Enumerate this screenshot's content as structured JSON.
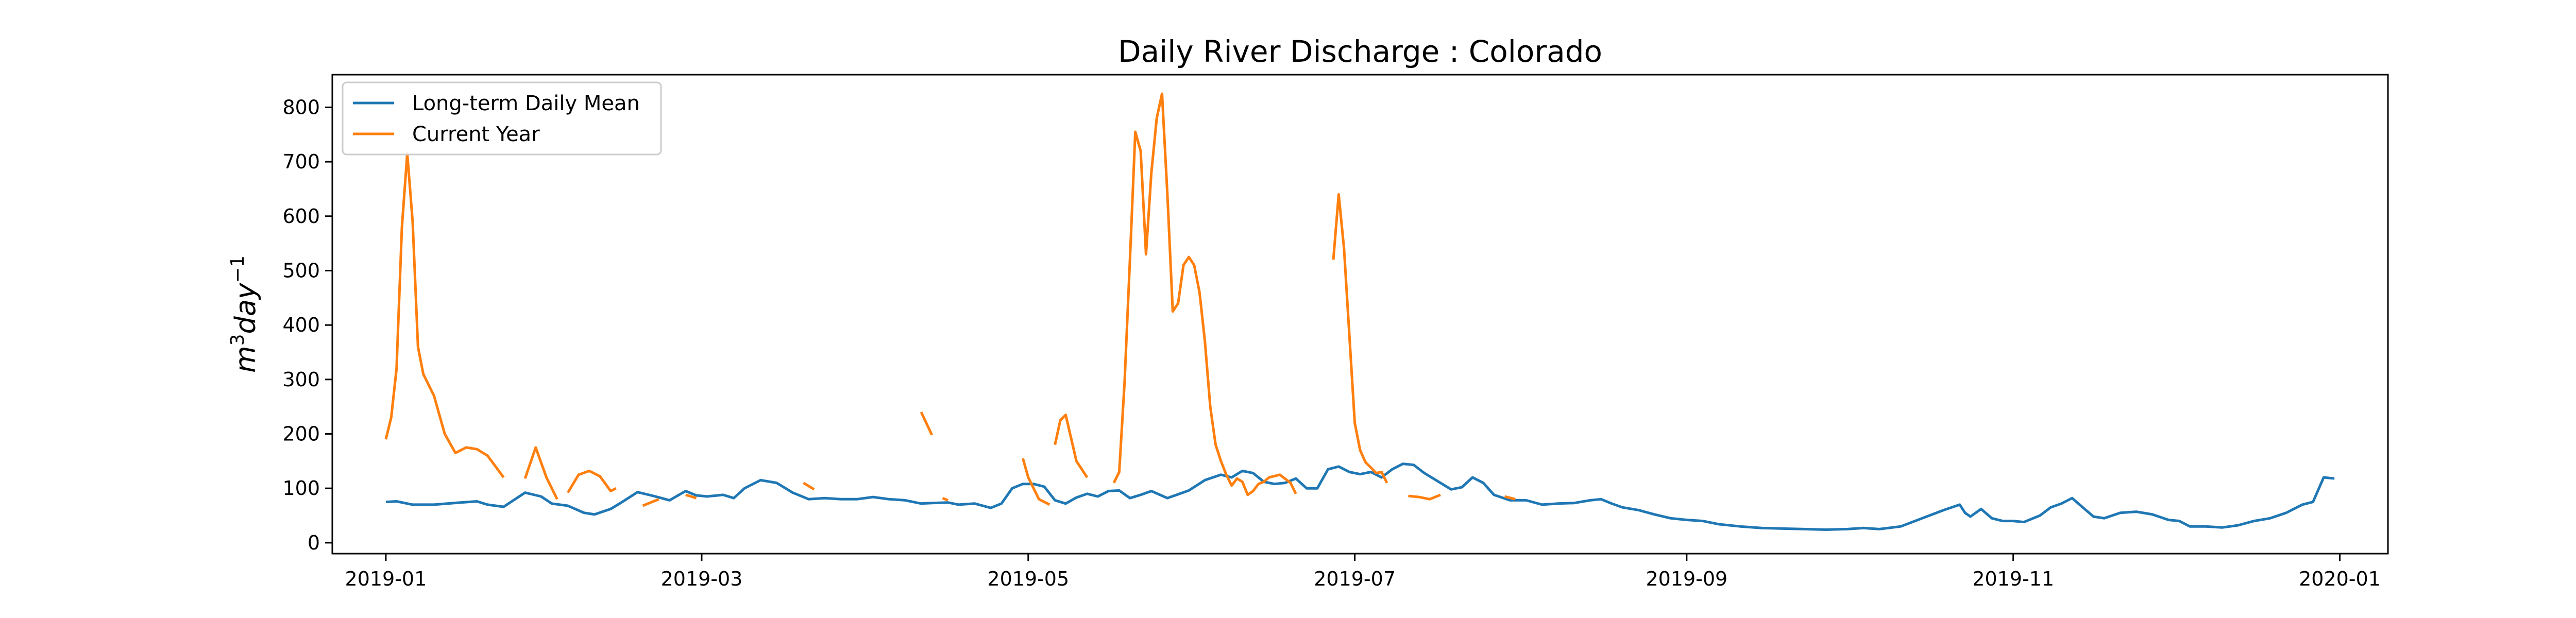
{
  "chart_data": {
    "type": "line",
    "title": "Daily River Discharge : Colorado",
    "ylabel_base": "m",
    "ylabel_sup1": "3",
    "ylabel_mid": "day",
    "ylabel_sup2": "−1",
    "xlim": [
      "2018-12-22",
      "2020-01-10"
    ],
    "ylim": [
      -20,
      860
    ],
    "x_ticks": [
      {
        "date": "2019-01-01",
        "label": "2019-01"
      },
      {
        "date": "2019-03-01",
        "label": "2019-03"
      },
      {
        "date": "2019-05-01",
        "label": "2019-05"
      },
      {
        "date": "2019-07-01",
        "label": "2019-07"
      },
      {
        "date": "2019-09-01",
        "label": "2019-09"
      },
      {
        "date": "2019-11-01",
        "label": "2019-11"
      },
      {
        "date": "2020-01-01",
        "label": "2020-01"
      }
    ],
    "y_ticks": [
      0,
      100,
      200,
      300,
      400,
      500,
      600,
      700,
      800
    ],
    "legend_position": "top-left",
    "series": [
      {
        "name": "Long-term Daily Mean",
        "color": "#1f77b4",
        "points": [
          [
            "2019-01-01",
            75
          ],
          [
            "2019-01-03",
            76
          ],
          [
            "2019-01-06",
            70
          ],
          [
            "2019-01-10",
            70
          ],
          [
            "2019-01-15",
            74
          ],
          [
            "2019-01-18",
            76
          ],
          [
            "2019-01-20",
            70
          ],
          [
            "2019-01-23",
            66
          ],
          [
            "2019-01-27",
            92
          ],
          [
            "2019-01-30",
            85
          ],
          [
            "2019-02-01",
            72
          ],
          [
            "2019-02-04",
            68
          ],
          [
            "2019-02-07",
            55
          ],
          [
            "2019-02-09",
            52
          ],
          [
            "2019-02-12",
            62
          ],
          [
            "2019-02-14",
            74
          ],
          [
            "2019-02-17",
            93
          ],
          [
            "2019-02-20",
            86
          ],
          [
            "2019-02-23",
            78
          ],
          [
            "2019-02-26",
            95
          ],
          [
            "2019-02-28",
            87
          ],
          [
            "2019-03-02",
            85
          ],
          [
            "2019-03-05",
            88
          ],
          [
            "2019-03-07",
            82
          ],
          [
            "2019-03-09",
            100
          ],
          [
            "2019-03-12",
            115
          ],
          [
            "2019-03-15",
            110
          ],
          [
            "2019-03-18",
            92
          ],
          [
            "2019-03-21",
            80
          ],
          [
            "2019-03-24",
            82
          ],
          [
            "2019-03-27",
            80
          ],
          [
            "2019-03-30",
            80
          ],
          [
            "2019-04-02",
            84
          ],
          [
            "2019-04-05",
            80
          ],
          [
            "2019-04-08",
            78
          ],
          [
            "2019-04-11",
            72
          ],
          [
            "2019-04-13",
            73
          ],
          [
            "2019-04-16",
            74
          ],
          [
            "2019-04-18",
            70
          ],
          [
            "2019-04-21",
            72
          ],
          [
            "2019-04-24",
            64
          ],
          [
            "2019-04-26",
            72
          ],
          [
            "2019-04-28",
            100
          ],
          [
            "2019-04-30",
            108
          ],
          [
            "2019-05-02",
            108
          ],
          [
            "2019-05-04",
            103
          ],
          [
            "2019-05-06",
            78
          ],
          [
            "2019-05-08",
            72
          ],
          [
            "2019-05-10",
            83
          ],
          [
            "2019-05-12",
            90
          ],
          [
            "2019-05-14",
            85
          ],
          [
            "2019-05-16",
            95
          ],
          [
            "2019-05-18",
            96
          ],
          [
            "2019-05-20",
            82
          ],
          [
            "2019-05-22",
            88
          ],
          [
            "2019-05-24",
            95
          ],
          [
            "2019-05-27",
            82
          ],
          [
            "2019-05-31",
            96
          ],
          [
            "2019-06-03",
            115
          ],
          [
            "2019-06-06",
            125
          ],
          [
            "2019-06-08",
            120
          ],
          [
            "2019-06-10",
            132
          ],
          [
            "2019-06-12",
            128
          ],
          [
            "2019-06-14",
            112
          ],
          [
            "2019-06-16",
            108
          ],
          [
            "2019-06-18",
            110
          ],
          [
            "2019-06-20",
            118
          ],
          [
            "2019-06-22",
            100
          ],
          [
            "2019-06-24",
            100
          ],
          [
            "2019-06-26",
            135
          ],
          [
            "2019-06-28",
            140
          ],
          [
            "2019-06-30",
            130
          ],
          [
            "2019-07-02",
            126
          ],
          [
            "2019-07-04",
            130
          ],
          [
            "2019-07-06",
            120
          ],
          [
            "2019-07-08",
            135
          ],
          [
            "2019-07-10",
            145
          ],
          [
            "2019-07-12",
            143
          ],
          [
            "2019-07-14",
            128
          ],
          [
            "2019-07-17",
            110
          ],
          [
            "2019-07-19",
            98
          ],
          [
            "2019-07-21",
            102
          ],
          [
            "2019-07-23",
            120
          ],
          [
            "2019-07-25",
            110
          ],
          [
            "2019-07-27",
            88
          ],
          [
            "2019-07-30",
            78
          ],
          [
            "2019-08-02",
            78
          ],
          [
            "2019-08-05",
            70
          ],
          [
            "2019-08-08",
            72
          ],
          [
            "2019-08-11",
            73
          ],
          [
            "2019-08-14",
            78
          ],
          [
            "2019-08-16",
            80
          ],
          [
            "2019-08-18",
            72
          ],
          [
            "2019-08-20",
            65
          ],
          [
            "2019-08-23",
            60
          ],
          [
            "2019-08-26",
            52
          ],
          [
            "2019-08-29",
            45
          ],
          [
            "2019-09-01",
            42
          ],
          [
            "2019-09-04",
            40
          ],
          [
            "2019-09-07",
            34
          ],
          [
            "2019-09-11",
            30
          ],
          [
            "2019-09-15",
            27
          ],
          [
            "2019-09-19",
            26
          ],
          [
            "2019-09-23",
            25
          ],
          [
            "2019-09-27",
            24
          ],
          [
            "2019-10-01",
            25
          ],
          [
            "2019-10-04",
            27
          ],
          [
            "2019-10-07",
            25
          ],
          [
            "2019-10-11",
            30
          ],
          [
            "2019-10-15",
            45
          ],
          [
            "2019-10-19",
            60
          ],
          [
            "2019-10-22",
            70
          ],
          [
            "2019-10-23",
            55
          ],
          [
            "2019-10-24",
            48
          ],
          [
            "2019-10-26",
            62
          ],
          [
            "2019-10-28",
            45
          ],
          [
            "2019-10-30",
            40
          ],
          [
            "2019-11-01",
            40
          ],
          [
            "2019-11-03",
            38
          ],
          [
            "2019-11-06",
            50
          ],
          [
            "2019-11-08",
            65
          ],
          [
            "2019-11-10",
            72
          ],
          [
            "2019-11-12",
            82
          ],
          [
            "2019-11-14",
            65
          ],
          [
            "2019-11-16",
            48
          ],
          [
            "2019-11-18",
            45
          ],
          [
            "2019-11-21",
            55
          ],
          [
            "2019-11-24",
            57
          ],
          [
            "2019-11-27",
            52
          ],
          [
            "2019-11-30",
            42
          ],
          [
            "2019-12-02",
            40
          ],
          [
            "2019-12-04",
            30
          ],
          [
            "2019-12-07",
            30
          ],
          [
            "2019-12-10",
            28
          ],
          [
            "2019-12-13",
            32
          ],
          [
            "2019-12-16",
            40
          ],
          [
            "2019-12-19",
            45
          ],
          [
            "2019-12-22",
            55
          ],
          [
            "2019-12-25",
            70
          ],
          [
            "2019-12-27",
            75
          ],
          [
            "2019-12-29",
            120
          ],
          [
            "2019-12-31",
            118
          ]
        ]
      },
      {
        "name": "Current Year",
        "color": "#ff7f0e",
        "segments": [
          [
            [
              "2019-01-01",
              190
            ],
            [
              "2019-01-02",
              230
            ],
            [
              "2019-01-03",
              320
            ],
            [
              "2019-01-04",
              580
            ],
            [
              "2019-01-05",
              715
            ],
            [
              "2019-01-06",
              590
            ],
            [
              "2019-01-07",
              360
            ],
            [
              "2019-01-08",
              310
            ],
            [
              "2019-01-10",
              270
            ],
            [
              "2019-01-12",
              200
            ],
            [
              "2019-01-14",
              165
            ],
            [
              "2019-01-16",
              175
            ],
            [
              "2019-01-18",
              172
            ],
            [
              "2019-01-20",
              160
            ],
            [
              "2019-01-23",
              120
            ]
          ],
          [
            [
              "2019-01-27",
              118
            ],
            [
              "2019-01-29",
              175
            ],
            [
              "2019-01-31",
              120
            ],
            [
              "2019-02-02",
              80
            ]
          ],
          [
            [
              "2019-02-04",
              92
            ],
            [
              "2019-02-06",
              125
            ],
            [
              "2019-02-08",
              132
            ],
            [
              "2019-02-10",
              122
            ],
            [
              "2019-02-12",
              95
            ],
            [
              "2019-02-13",
              100
            ]
          ],
          [
            [
              "2019-02-18",
              68
            ],
            [
              "2019-02-21",
              80
            ]
          ],
          [
            [
              "2019-02-26",
              88
            ],
            [
              "2019-02-28",
              82
            ]
          ],
          [
            [
              "2019-03-20",
              110
            ],
            [
              "2019-03-22",
              98
            ]
          ],
          [
            [
              "2019-04-11",
              240
            ],
            [
              "2019-04-13",
              198
            ]
          ],
          [
            [
              "2019-04-15",
              82
            ],
            [
              "2019-04-16",
              78
            ]
          ],
          [
            [
              "2019-04-30",
              155
            ],
            [
              "2019-05-01",
              120
            ],
            [
              "2019-05-03",
              80
            ],
            [
              "2019-05-05",
              70
            ]
          ],
          [
            [
              "2019-05-06",
              180
            ],
            [
              "2019-05-07",
              225
            ],
            [
              "2019-05-08",
              235
            ],
            [
              "2019-05-10",
              150
            ],
            [
              "2019-05-12",
              120
            ]
          ],
          [
            [
              "2019-05-17",
              110
            ],
            [
              "2019-05-18",
              130
            ],
            [
              "2019-05-19",
              295
            ],
            [
              "2019-05-20",
              520
            ],
            [
              "2019-05-21",
              755
            ],
            [
              "2019-05-22",
              720
            ],
            [
              "2019-05-23",
              530
            ],
            [
              "2019-05-24",
              680
            ],
            [
              "2019-05-25",
              780
            ],
            [
              "2019-05-26",
              825
            ],
            [
              "2019-05-27",
              640
            ],
            [
              "2019-05-28",
              425
            ],
            [
              "2019-05-29",
              440
            ],
            [
              "2019-05-30",
              510
            ],
            [
              "2019-05-31",
              525
            ],
            [
              "2019-06-01",
              510
            ],
            [
              "2019-06-02",
              460
            ],
            [
              "2019-06-03",
              370
            ],
            [
              "2019-06-04",
              250
            ],
            [
              "2019-06-05",
              180
            ],
            [
              "2019-06-06",
              150
            ],
            [
              "2019-06-07",
              125
            ],
            [
              "2019-06-08",
              105
            ],
            [
              "2019-06-09",
              118
            ],
            [
              "2019-06-10",
              112
            ],
            [
              "2019-06-11",
              88
            ],
            [
              "2019-06-12",
              95
            ],
            [
              "2019-06-13",
              108
            ],
            [
              "2019-06-14",
              112
            ],
            [
              "2019-06-15",
              120
            ],
            [
              "2019-06-17",
              125
            ],
            [
              "2019-06-19",
              110
            ],
            [
              "2019-06-20",
              90
            ]
          ],
          [
            [
              "2019-06-27",
              520
            ],
            [
              "2019-06-28",
              640
            ],
            [
              "2019-06-29",
              540
            ],
            [
              "2019-06-30",
              380
            ],
            [
              "2019-07-01",
              220
            ],
            [
              "2019-07-02",
              170
            ],
            [
              "2019-07-03",
              148
            ],
            [
              "2019-07-04",
              138
            ],
            [
              "2019-07-05",
              128
            ],
            [
              "2019-07-06",
              130
            ],
            [
              "2019-07-07",
              110
            ]
          ],
          [
            [
              "2019-07-11",
              86
            ],
            [
              "2019-07-13",
              84
            ],
            [
              "2019-07-15",
              80
            ],
            [
              "2019-07-17",
              88
            ]
          ],
          [
            [
              "2019-07-29",
              85
            ],
            [
              "2019-07-31",
              80
            ]
          ]
        ]
      }
    ]
  }
}
